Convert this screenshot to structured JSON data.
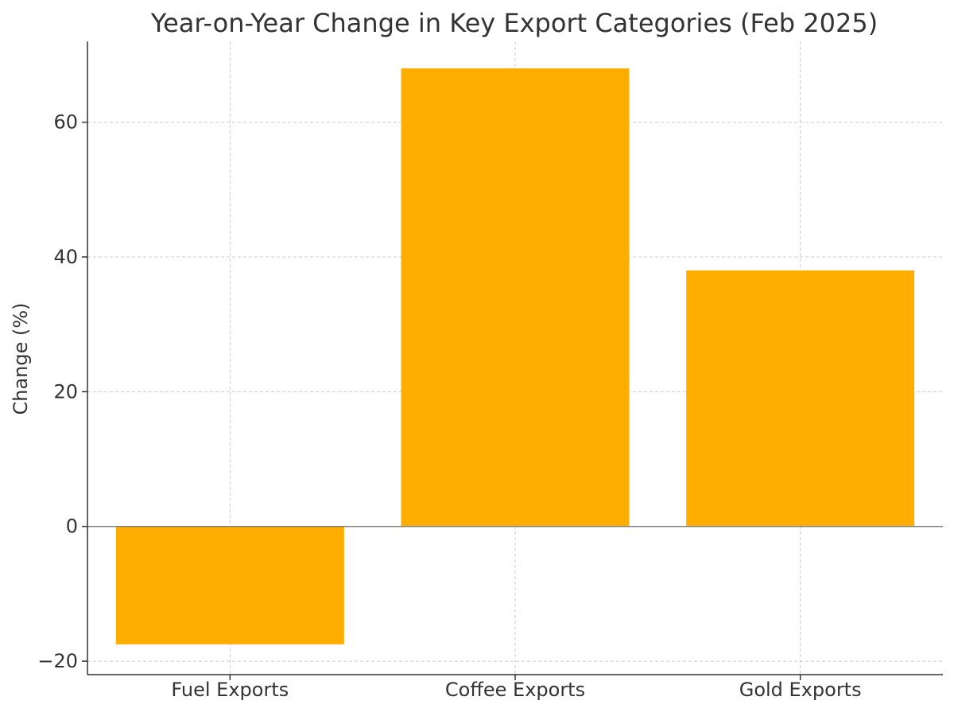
{
  "chart_data": {
    "type": "bar",
    "title": "Year-on-Year Change in Key Export Categories (Feb 2025)",
    "xlabel": "",
    "ylabel": "Change (%)",
    "categories": [
      "Fuel Exports",
      "Coffee Exports",
      "Gold Exports"
    ],
    "values": [
      -17.5,
      68,
      38
    ],
    "ylim": [
      -22,
      72
    ],
    "yticks": [
      -20,
      0,
      20,
      40,
      60
    ],
    "ytick_labels": [
      "−20",
      "0",
      "20",
      "40",
      "60"
    ],
    "grid": true,
    "bar_color": "#FFAE00",
    "zero_line_color": "#808080",
    "grid_color": "#cccccc"
  }
}
